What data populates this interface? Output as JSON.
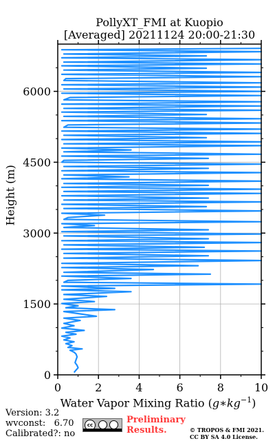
{
  "title_line1": "PollyXT_FMI at Kuopio",
  "title_line2": "[Averaged] 20211124 20:00-21:30",
  "footer": {
    "version": "Version: 3.2",
    "wvconst": "wvconst:   6.70",
    "calibrated": "Calibrated?: no",
    "preliminary_line1": "Preliminary",
    "preliminary_line2": "Results.",
    "copyright_line1": "© TROPOS & FMI 2021.",
    "copyright_line2": "CC BY SA 4.0 License.",
    "license_badge": "cc by sa"
  },
  "chart_data": {
    "type": "line",
    "title": "PollyXT_FMI at Kuopio [Averaged] 20211124 20:00-21:30",
    "xlabel": "Water Vapor Mixing Ratio (g*kg^-1)",
    "ylabel": "Height (m)",
    "xlim": [
      0,
      10
    ],
    "ylim": [
      0,
      7000
    ],
    "xticks": [
      0,
      2,
      4,
      6,
      8,
      10
    ],
    "yticks": [
      0,
      1500,
      3000,
      4500,
      6000
    ],
    "grid": true,
    "line_color": "#1e90ff",
    "series": [
      {
        "points": [
          [
            0.8,
            50
          ],
          [
            0.9,
            100
          ],
          [
            1.0,
            150
          ],
          [
            0.95,
            200
          ],
          [
            0.85,
            260
          ],
          [
            0.9,
            320
          ],
          [
            0.95,
            380
          ],
          [
            0.9,
            440
          ],
          [
            0.8,
            480
          ],
          [
            0.6,
            520
          ],
          [
            1.2,
            550
          ],
          [
            0.5,
            580
          ],
          [
            0.7,
            620
          ],
          [
            0.4,
            660
          ],
          [
            0.8,
            700
          ],
          [
            0.3,
            740
          ],
          [
            0.6,
            780
          ],
          [
            0.2,
            820
          ],
          [
            0.9,
            860
          ],
          [
            0.4,
            900
          ],
          [
            1.3,
            940
          ],
          [
            0.2,
            990
          ],
          [
            0.8,
            1040
          ],
          [
            0.3,
            1090
          ],
          [
            1.1,
            1150
          ],
          [
            0.3,
            1200
          ],
          [
            1.9,
            1240
          ],
          [
            1.1,
            1290
          ],
          [
            0.3,
            1340
          ],
          [
            2.8,
            1380
          ],
          [
            0.4,
            1420
          ],
          [
            1.0,
            1460
          ],
          [
            0.2,
            1510
          ],
          [
            1.8,
            1550
          ],
          [
            0.3,
            1600
          ],
          [
            2.4,
            1660
          ],
          [
            0.3,
            1700
          ],
          [
            3.6,
            1760
          ],
          [
            0.2,
            1800
          ],
          [
            2.8,
            1830
          ],
          [
            0.2,
            1880
          ],
          [
            10,
            1920
          ],
          [
            0.3,
            1960
          ],
          [
            0.5,
            2000
          ],
          [
            3.6,
            2040
          ],
          [
            0.2,
            2090
          ],
          [
            7.5,
            2130
          ],
          [
            0.3,
            2170
          ],
          [
            4.7,
            2230
          ],
          [
            0.2,
            2270
          ],
          [
            6.9,
            2310
          ],
          [
            0.2,
            2360
          ],
          [
            10,
            2420
          ],
          [
            0.3,
            2470
          ],
          [
            7.4,
            2520
          ],
          [
            0.3,
            2570
          ],
          [
            10,
            2620
          ],
          [
            0.2,
            2660
          ],
          [
            7.2,
            2700
          ],
          [
            0.3,
            2750
          ],
          [
            10,
            2800
          ],
          [
            0.2,
            2840
          ],
          [
            7.4,
            2880
          ],
          [
            0.3,
            2940
          ],
          [
            10,
            2980
          ],
          [
            0.2,
            3030
          ],
          [
            7.4,
            3070
          ],
          [
            0.3,
            3120
          ],
          [
            1.8,
            3160
          ],
          [
            0.2,
            3200
          ],
          [
            10,
            3240
          ],
          [
            0.3,
            3290
          ],
          [
            0.5,
            3330
          ],
          [
            2.3,
            3380
          ],
          [
            0.2,
            3420
          ],
          [
            10,
            3470
          ],
          [
            0.3,
            3520
          ],
          [
            7.3,
            3560
          ],
          [
            0.2,
            3610
          ],
          [
            10,
            3660
          ],
          [
            0.3,
            3700
          ],
          [
            7.4,
            3740
          ],
          [
            0.2,
            3790
          ],
          [
            10,
            3840
          ],
          [
            0.3,
            3880
          ],
          [
            10,
            3930
          ],
          [
            0.2,
            3970
          ],
          [
            7.4,
            4010
          ],
          [
            0.3,
            4050
          ],
          [
            10,
            4100
          ],
          [
            0.2,
            4150
          ],
          [
            3.5,
            4190
          ],
          [
            0.3,
            4230
          ],
          [
            10,
            4280
          ],
          [
            0.2,
            4320
          ],
          [
            7.4,
            4370
          ],
          [
            0.3,
            4410
          ],
          [
            10,
            4460
          ],
          [
            0.2,
            4500
          ],
          [
            0.3,
            4540
          ],
          [
            7.4,
            4580
          ],
          [
            0.2,
            4630
          ],
          [
            10,
            4670
          ],
          [
            0.3,
            4720
          ],
          [
            3.6,
            4760
          ],
          [
            0.2,
            4800
          ],
          [
            10,
            4850
          ],
          [
            0.3,
            4890
          ],
          [
            10,
            4930
          ],
          [
            0.2,
            4980
          ],
          [
            7.3,
            5020
          ],
          [
            0.3,
            5070
          ],
          [
            10,
            5110
          ],
          [
            0.2,
            5160
          ],
          [
            10,
            5200
          ],
          [
            0.3,
            5240
          ],
          [
            0.5,
            5290
          ],
          [
            10,
            5330
          ],
          [
            0.2,
            5380
          ],
          [
            10,
            5420
          ],
          [
            0.3,
            5470
          ],
          [
            7.3,
            5510
          ],
          [
            0.2,
            5560
          ],
          [
            10,
            5600
          ],
          [
            0.3,
            5640
          ],
          [
            10,
            5690
          ],
          [
            0.2,
            5730
          ],
          [
            10,
            5780
          ],
          [
            0.3,
            5820
          ],
          [
            0.6,
            5870
          ],
          [
            10,
            5910
          ],
          [
            0.2,
            5960
          ],
          [
            10,
            6000
          ],
          [
            0.3,
            6050
          ],
          [
            10,
            6090
          ],
          [
            0.2,
            6140
          ],
          [
            10,
            6180
          ],
          [
            0.3,
            6230
          ],
          [
            0.4,
            6270
          ],
          [
            10,
            6310
          ],
          [
            0.2,
            6360
          ],
          [
            10,
            6400
          ],
          [
            0.3,
            6450
          ],
          [
            7.3,
            6490
          ],
          [
            0.2,
            6540
          ],
          [
            10,
            6580
          ],
          [
            0.3,
            6620
          ],
          [
            10,
            6670
          ],
          [
            0.2,
            6710
          ],
          [
            7.3,
            6750
          ],
          [
            0.3,
            6790
          ],
          [
            10,
            6840
          ],
          [
            0.2,
            6880
          ],
          [
            10,
            6910
          ]
        ]
      }
    ]
  }
}
